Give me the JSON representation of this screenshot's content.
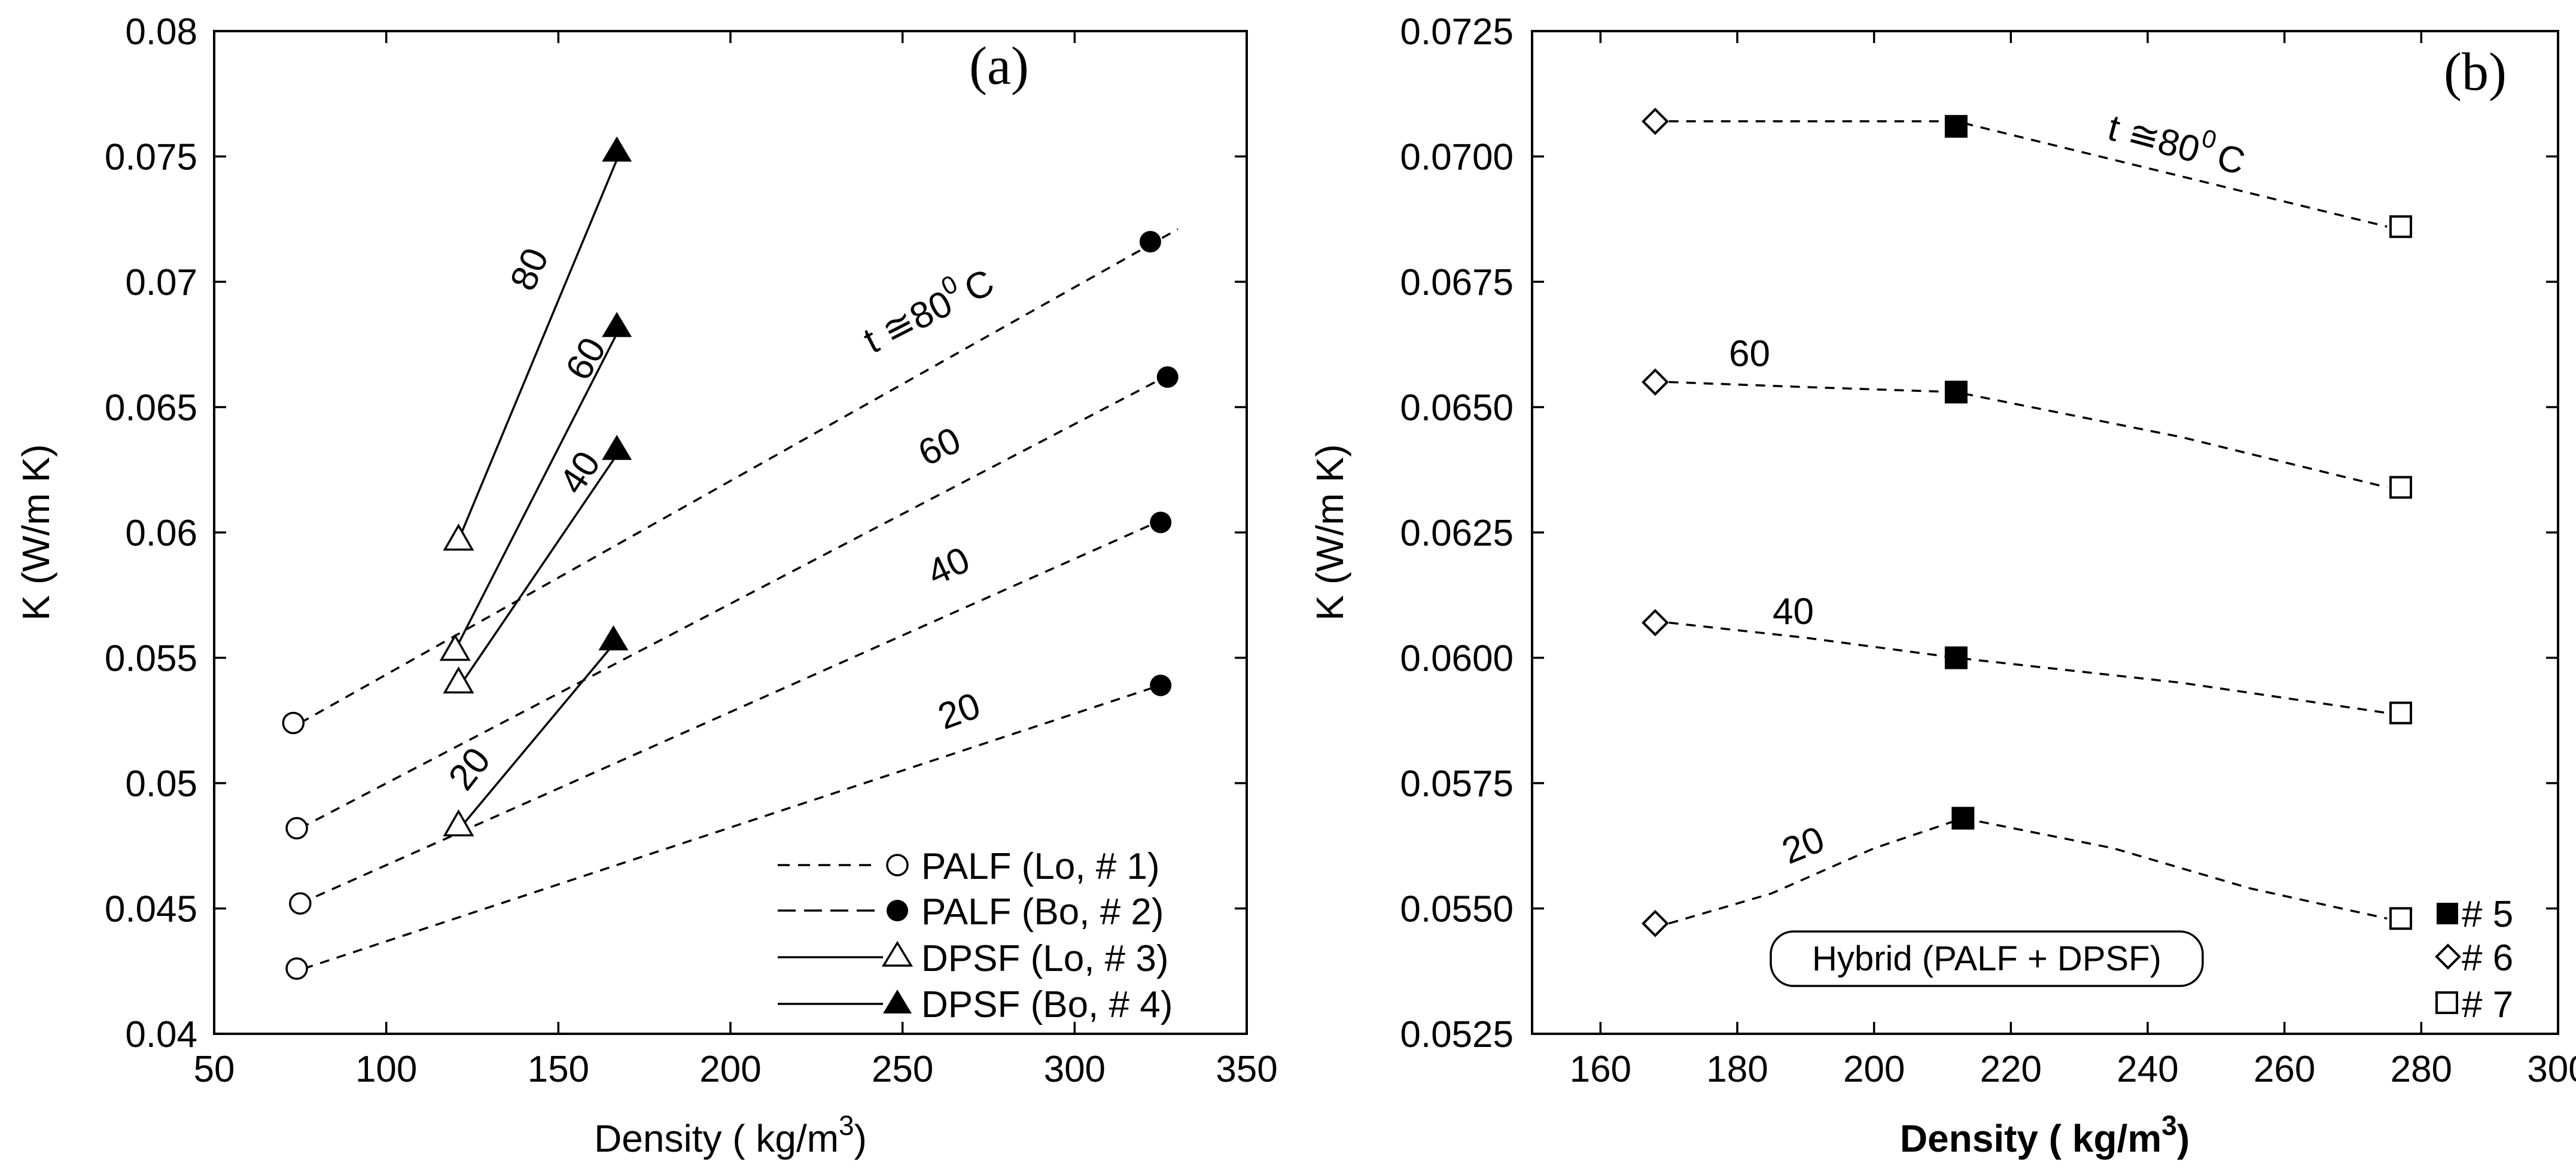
{
  "chart_data": [
    {
      "type": "line",
      "panel_label": "(a)",
      "xlabel": "Density ( kg/m",
      "xlabel_sup": "3",
      "xlabel_close": ")",
      "ylabel": "K (W/m K)",
      "xlim": [
        50,
        350
      ],
      "ylim": [
        0.04,
        0.08
      ],
      "xticks": [
        50,
        100,
        150,
        200,
        250,
        300,
        350
      ],
      "xtick_labels": [
        "50",
        "100",
        "150",
        "200",
        "250",
        "300",
        "350"
      ],
      "yticks": [
        0.04,
        0.045,
        0.05,
        0.055,
        0.06,
        0.065,
        0.07,
        0.075,
        0.08
      ],
      "ytick_labels": [
        "0.04",
        "0.045",
        "0.05",
        "0.055",
        "0.06",
        "0.065",
        "0.07",
        "0.075",
        "0.08"
      ],
      "series": [
        {
          "name": "PALF (Lo, # 1)",
          "marker": "open-circle",
          "points": [
            [
              73,
              0.0524
            ],
            [
              74,
              0.0482
            ],
            [
              75,
              0.0452
            ],
            [
              74,
              0.0426
            ]
          ]
        },
        {
          "name": "PALF (Bo, # 2)",
          "marker": "filled-circle",
          "points": [
            [
              322,
              0.0716
            ],
            [
              327,
              0.0662
            ],
            [
              325,
              0.0604
            ],
            [
              325,
              0.0539
            ]
          ]
        },
        {
          "name": "DPSF (Lo, # 3)",
          "marker": "open-triangle",
          "points": [
            [
              121,
              0.0597
            ],
            [
              120,
              0.0553
            ],
            [
              121,
              0.054
            ],
            [
              121,
              0.0483
            ]
          ]
        },
        {
          "name": "DPSF (Bo, # 4)",
          "marker": "filled-triangle",
          "points": [
            [
              167,
              0.0752
            ],
            [
              167,
              0.0682
            ],
            [
              167,
              0.0633
            ],
            [
              166,
              0.0557
            ]
          ]
        }
      ],
      "curves": [
        {
          "temp": "80",
          "style": "dashed",
          "from": [
            75,
            0.0524
          ],
          "to": [
            330,
            0.0721
          ]
        },
        {
          "temp": "60",
          "style": "dashed",
          "from": [
            75,
            0.0482
          ],
          "to": [
            329,
            0.0664
          ]
        },
        {
          "temp": "40",
          "style": "dashed",
          "from": [
            75,
            0.0452
          ],
          "to": [
            327,
            0.0606
          ]
        },
        {
          "temp": "20",
          "style": "dashed",
          "from": [
            76,
            0.0426
          ],
          "to": [
            327,
            0.054
          ]
        },
        {
          "temp": "80",
          "style": "solid",
          "from": [
            121,
            0.0597
          ],
          "to": [
            168,
            0.0752
          ]
        },
        {
          "temp": "60",
          "style": "solid",
          "from": [
            120,
            0.0553
          ],
          "to": [
            168,
            0.0682
          ]
        },
        {
          "temp": "40",
          "style": "solid",
          "from": [
            122,
            0.054
          ],
          "to": [
            168,
            0.0633
          ]
        },
        {
          "temp": "20",
          "style": "solid",
          "from": [
            122,
            0.0483
          ],
          "to": [
            167,
            0.0557
          ]
        }
      ],
      "annotations": {
        "dashed_80_prefix": "t ≅80",
        "dashed_80_sup": "0",
        "dashed_80_suffix": "C",
        "dashed_60": "60",
        "dashed_40": "40",
        "dashed_20": "20",
        "solid_80": "80",
        "solid_60": "60",
        "solid_40": "40",
        "solid_20": "20"
      },
      "legend_position": "bottom-right"
    },
    {
      "type": "line",
      "panel_label": "(b)",
      "xlabel": "Density ( kg/m",
      "xlabel_sup": "3",
      "xlabel_close": ")",
      "ylabel": "K (W/m K)",
      "xlim": [
        150,
        300
      ],
      "ylim": [
        0.0525,
        0.0725
      ],
      "xticks": [
        160,
        180,
        200,
        220,
        240,
        260,
        280,
        300
      ],
      "xtick_labels": [
        "160",
        "180",
        "200",
        "220",
        "240",
        "260",
        "280",
        "300"
      ],
      "yticks": [
        0.0525,
        0.055,
        0.0575,
        0.06,
        0.0625,
        0.065,
        0.0675,
        0.07,
        0.0725
      ],
      "ytick_labels": [
        "0.0525",
        "0.0550",
        "0.0575",
        "0.0600",
        "0.0625",
        "0.0650",
        "0.0675",
        "0.0700",
        "0.0725"
      ],
      "series": [
        {
          "name": "# 5",
          "marker": "filled-square",
          "points": [
            [
              212,
              0.0706
            ],
            [
              212,
              0.0653
            ],
            [
              212,
              0.06
            ],
            [
              213,
              0.0568
            ]
          ]
        },
        {
          "name": "# 6",
          "marker": "open-diamond",
          "points": [
            [
              168,
              0.0707
            ],
            [
              168,
              0.0655
            ],
            [
              168,
              0.0607
            ],
            [
              168,
              0.0547
            ]
          ]
        },
        {
          "name": "# 7",
          "marker": "open-square",
          "points": [
            [
              277,
              0.0686
            ],
            [
              277,
              0.0634
            ],
            [
              277,
              0.0589
            ],
            [
              277,
              0.0548
            ]
          ]
        }
      ],
      "curves": [
        {
          "temp": "80",
          "points": [
            [
              170,
              0.0707
            ],
            [
              190,
              0.0707
            ],
            [
              212,
              0.0707
            ],
            [
              245,
              0.0696
            ],
            [
              275,
              0.0686
            ]
          ]
        },
        {
          "temp": "60",
          "points": [
            [
              170,
              0.0655
            ],
            [
              190,
              0.0654
            ],
            [
              212,
              0.0653
            ],
            [
              245,
              0.0644
            ],
            [
              275,
              0.0634
            ]
          ]
        },
        {
          "temp": "40",
          "points": [
            [
              170,
              0.0607
            ],
            [
              190,
              0.0604
            ],
            [
              212,
              0.06
            ],
            [
              245,
              0.0595
            ],
            [
              275,
              0.0589
            ]
          ]
        },
        {
          "temp": "20",
          "points": [
            [
              170,
              0.0547
            ],
            [
              185,
              0.0553
            ],
            [
              200,
              0.0562
            ],
            [
              213,
              0.0568
            ],
            [
              235,
              0.0562
            ],
            [
              255,
              0.0554
            ],
            [
              275,
              0.0548
            ]
          ]
        }
      ],
      "annotations": {
        "curve_80_prefix": "t ≅80",
        "curve_80_sup": "0",
        "curve_80_suffix": "C",
        "curve_60": "60",
        "curve_40": "40",
        "curve_20": "20"
      },
      "box_label": "Hybrid (PALF + DPSF)",
      "legend_position": "bottom-right"
    }
  ]
}
